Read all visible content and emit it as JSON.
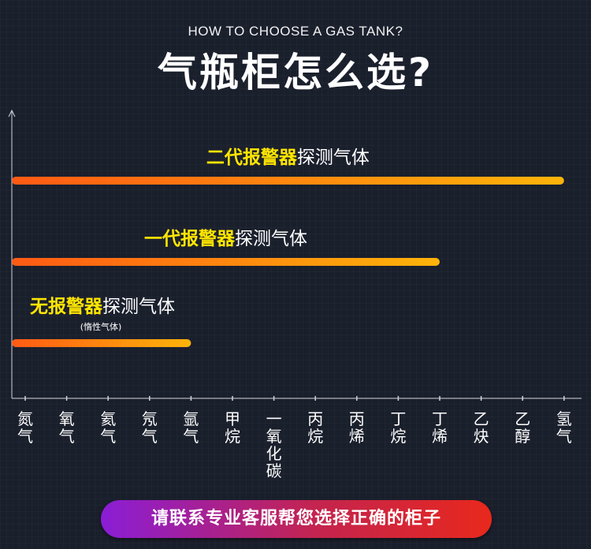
{
  "header": {
    "subtitle": "HOW TO CHOOSE A GAS TANK?",
    "title": "气瓶柜怎么选?"
  },
  "chart_data": {
    "type": "bar",
    "orientation": "horizontal",
    "categories": [
      "氮气",
      "氧气",
      "氦气",
      "氖气",
      "氩气",
      "甲烷",
      "一氧化碳",
      "丙烷",
      "丙烯",
      "丁烷",
      "丁烯",
      "乙炔",
      "乙醇",
      "氢气"
    ],
    "series": [
      {
        "label_highlight": "二代报警器",
        "label_rest": "探测气体",
        "extends_to": "氢气",
        "end_index": 13
      },
      {
        "label_highlight": "一代报警器",
        "label_rest": "探测气体",
        "extends_to": "丁烯",
        "end_index": 10
      },
      {
        "label_highlight": "无报警器",
        "label_rest": "探测气体",
        "note": "(惰性气体)",
        "extends_to": "氩气",
        "end_index": 4
      }
    ],
    "colors": {
      "highlight_text": "#ffe600",
      "bar_start": "#ff5a14",
      "bar_end": "#ffb40a",
      "axis": "#cfd3da"
    }
  },
  "cta": {
    "label": "请联系专业客服帮您选择正确的柜子"
  }
}
